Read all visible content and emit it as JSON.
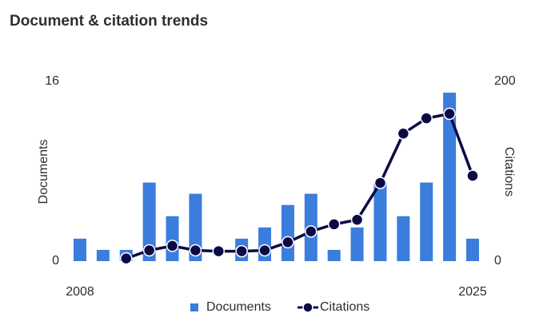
{
  "chart_data": {
    "type": "bar_line",
    "title": "Document & citation trends",
    "categories": [
      "2008",
      null,
      null,
      null,
      null,
      null,
      null,
      null,
      null,
      null,
      null,
      null,
      null,
      null,
      null,
      null,
      null,
      "2025"
    ],
    "ylabel": "Documents",
    "y2label": "Citations",
    "ylim": [
      0,
      16
    ],
    "yticks": [
      0,
      16
    ],
    "y2lim": [
      0,
      200
    ],
    "y2ticks": [
      0,
      200
    ],
    "series": [
      {
        "name": "Documents",
        "type": "bar",
        "color": "#3b7ddd",
        "values": [
          2,
          1,
          1,
          7,
          4,
          6,
          0,
          2,
          3,
          5,
          6,
          1,
          3,
          7,
          4,
          7,
          15,
          2
        ]
      },
      {
        "name": "Citations",
        "type": "line",
        "axis": "y2",
        "color": "#0b0a45",
        "values": [
          null,
          null,
          3,
          12,
          17,
          12,
          11,
          11,
          12,
          21,
          33,
          41,
          46,
          87,
          142,
          159,
          164,
          95
        ]
      }
    ],
    "legend": "bottom"
  }
}
